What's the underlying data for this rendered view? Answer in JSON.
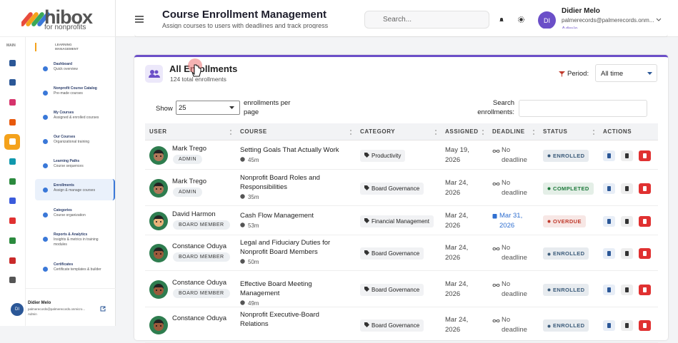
{
  "sidebar": {
    "logo": {
      "name": "hibox",
      "tagline": "for nonprofits"
    },
    "rail_label": "MAIN",
    "section_label": "LEARNING MANAGEMENT",
    "nav": [
      {
        "title": "Dashboard",
        "subtitle": "Quick overview"
      },
      {
        "title": "Nonprofit Course Catalog",
        "subtitle": "Pre-made courses"
      },
      {
        "title": "My Courses",
        "subtitle": "Assigned & enrolled courses"
      },
      {
        "title": "Our Courses",
        "subtitle": "Organizational training"
      },
      {
        "title": "Learning Paths",
        "subtitle": "Course sequences"
      },
      {
        "title": "Enrollments",
        "subtitle": "Assign & manage courses"
      },
      {
        "title": "Categories",
        "subtitle": "Course organization"
      },
      {
        "title": "Reports & Analytics",
        "subtitle": "Insights & metrics in training modules"
      },
      {
        "title": "Certificates",
        "subtitle": "Certificate templates & builder"
      }
    ],
    "user": {
      "initials": "DI",
      "name": "Didier Melo",
      "email": "palmerecords@palmerecords.onmicro...",
      "role": "Admin"
    }
  },
  "header": {
    "title": "Course Enrollment Management",
    "subtitle": "Assign courses to users with deadlines and track progress",
    "search_placeholder": "Search...",
    "user": {
      "initials": "DI",
      "name": "Didier Melo",
      "email": "palmerecords@palmerecords.onm...",
      "role": "Admin"
    }
  },
  "card": {
    "title": "All Enrollments",
    "subtitle": "124 total enrollments",
    "period_label": "Period:",
    "period_value": "All time",
    "show_label": "Show",
    "page_size": "25",
    "page_size_suffix": "enrollments per page",
    "search_label": "Search enrollments:"
  },
  "table": {
    "columns": [
      "USER",
      "COURSE",
      "CATEGORY",
      "ASSIGNED",
      "DEADLINE",
      "STATUS",
      "ACTIONS"
    ],
    "rows": [
      {
        "user": "Mark Trego",
        "role": "ADMIN",
        "course": "Setting Goals That Actually Work",
        "duration": "45m",
        "category": "Productivity",
        "assigned": "May 19, 2026",
        "deadline": "No deadline",
        "status": "ENROLLED",
        "status_color": "#3b5b7a"
      },
      {
        "user": "Mark Trego",
        "role": "ADMIN",
        "course": "Nonprofit Board Roles and Responsibilities",
        "duration": "35m",
        "category": "Board Governance",
        "assigned": "Mar 24, 2026",
        "deadline": "No deadline",
        "status": "COMPLETED",
        "status_color": "#1e7a3c"
      },
      {
        "user": "David Harmon",
        "role": "BOARD MEMBER",
        "course": "Cash Flow Management",
        "duration": "53m",
        "category": "Financial Management",
        "assigned": "Mar 24, 2026",
        "deadline": "Mar 31, 2026",
        "deadline_color": "#2f6fd0",
        "status": "OVERDUE",
        "status_color": "#c0392b"
      },
      {
        "user": "Constance Oduya",
        "role": "BOARD MEMBER",
        "course": "Legal and Fiduciary Duties for Nonprofit Board Members",
        "duration": "50m",
        "category": "Board Governance",
        "assigned": "Mar 24, 2026",
        "deadline": "No deadline",
        "status": "ENROLLED",
        "status_color": "#3b5b7a"
      },
      {
        "user": "Constance Oduya",
        "role": "BOARD MEMBER",
        "course": "Effective Board Meeting Management",
        "duration": "49m",
        "category": "Board Governance",
        "assigned": "Mar 24, 2026",
        "deadline": "No deadline",
        "status": "ENROLLED",
        "status_color": "#3b5b7a"
      },
      {
        "user": "Constance Oduya",
        "course": "Nonprofit Executive-Board Relations",
        "category": "Board Governance",
        "assigned": "Mar 24, 2026",
        "deadline": "No deadline",
        "status": "ENROLLED",
        "status_color": "#3b5b7a"
      }
    ]
  }
}
